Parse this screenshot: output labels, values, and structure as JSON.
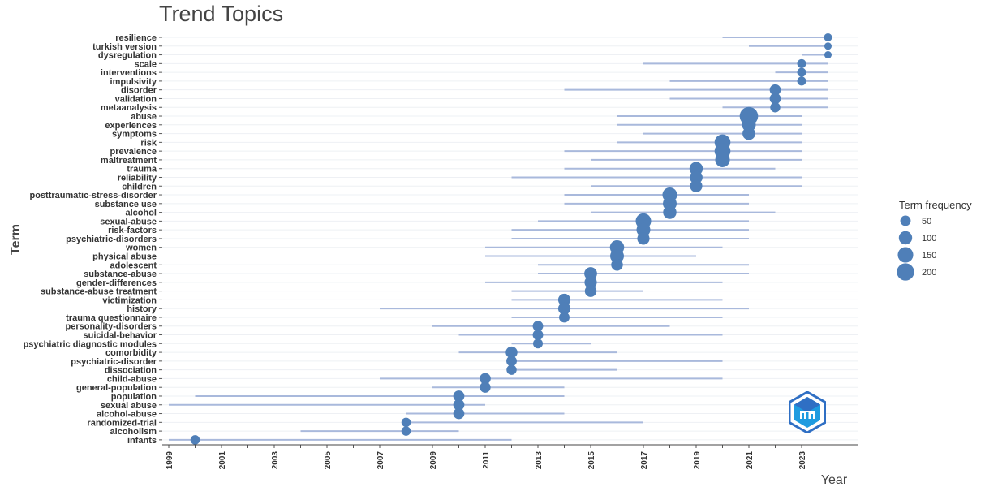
{
  "chart_data": {
    "type": "scatter",
    "title": "Trend Topics",
    "xlabel": "Year",
    "ylabel": "Term",
    "legend_title": "Term frequency",
    "legend_placement": "right",
    "legend_sizes": [
      50,
      100,
      150,
      200
    ],
    "xlim": [
      1998,
      2025
    ],
    "x_ticks": [
      1999,
      2001,
      2003,
      2005,
      2007,
      2009,
      2011,
      2013,
      2015,
      2017,
      2019,
      2021,
      2023
    ],
    "colors": {
      "point": "#4f7fb8",
      "range_line": "#a9b9dc"
    },
    "terms": [
      {
        "term": "resilience",
        "year": 2024,
        "q1": 2020,
        "q3": 2024,
        "freq": 22
      },
      {
        "term": "turkish version",
        "year": 2024,
        "q1": 2021,
        "q3": 2024,
        "freq": 15
      },
      {
        "term": "dysregulation",
        "year": 2024,
        "q1": 2023,
        "q3": 2024,
        "freq": 15
      },
      {
        "term": "scale",
        "year": 2023,
        "q1": 2017,
        "q3": 2024,
        "freq": 30
      },
      {
        "term": "interventions",
        "year": 2023,
        "q1": 2022,
        "q3": 2024,
        "freq": 30
      },
      {
        "term": "impulsivity",
        "year": 2023,
        "q1": 2018,
        "q3": 2024,
        "freq": 30
      },
      {
        "term": "disorder",
        "year": 2022,
        "q1": 2014,
        "q3": 2024,
        "freq": 60
      },
      {
        "term": "validation",
        "year": 2022,
        "q1": 2018,
        "q3": 2024,
        "freq": 60
      },
      {
        "term": "metaanalysis",
        "year": 2022,
        "q1": 2020,
        "q3": 2024,
        "freq": 45
      },
      {
        "term": "abuse",
        "year": 2021,
        "q1": 2016,
        "q3": 2023,
        "freq": 230
      },
      {
        "term": "experiences",
        "year": 2021,
        "q1": 2016,
        "q3": 2023,
        "freq": 110
      },
      {
        "term": "symptoms",
        "year": 2021,
        "q1": 2017,
        "q3": 2023,
        "freq": 90
      },
      {
        "term": "risk",
        "year": 2020,
        "q1": 2016,
        "q3": 2023,
        "freq": 160
      },
      {
        "term": "prevalence",
        "year": 2020,
        "q1": 2014,
        "q3": 2023,
        "freq": 160
      },
      {
        "term": "maltreatment",
        "year": 2020,
        "q1": 2015,
        "q3": 2023,
        "freq": 130
      },
      {
        "term": "trauma",
        "year": 2019,
        "q1": 2014,
        "q3": 2022,
        "freq": 100
      },
      {
        "term": "reliability",
        "year": 2019,
        "q1": 2012,
        "q3": 2023,
        "freq": 90
      },
      {
        "term": "children",
        "year": 2019,
        "q1": 2015,
        "q3": 2023,
        "freq": 80
      },
      {
        "term": "posttraumatic-stress-disorder",
        "year": 2018,
        "q1": 2014,
        "q3": 2021,
        "freq": 130
      },
      {
        "term": "substance use",
        "year": 2018,
        "q1": 2014,
        "q3": 2021,
        "freq": 110
      },
      {
        "term": "alcohol",
        "year": 2018,
        "q1": 2015,
        "q3": 2022,
        "freq": 100
      },
      {
        "term": "sexual-abuse",
        "year": 2017,
        "q1": 2013,
        "q3": 2021,
        "freq": 150
      },
      {
        "term": "risk-factors",
        "year": 2017,
        "q1": 2012,
        "q3": 2021,
        "freq": 110
      },
      {
        "term": "psychiatric-disorders",
        "year": 2017,
        "q1": 2012,
        "q3": 2021,
        "freq": 80
      },
      {
        "term": "women",
        "year": 2016,
        "q1": 2011,
        "q3": 2020,
        "freq": 120
      },
      {
        "term": "physical abuse",
        "year": 2016,
        "q1": 2011,
        "q3": 2019,
        "freq": 110
      },
      {
        "term": "adolescent",
        "year": 2016,
        "q1": 2013,
        "q3": 2021,
        "freq": 70
      },
      {
        "term": "substance-abuse",
        "year": 2015,
        "q1": 2013,
        "q3": 2021,
        "freq": 90
      },
      {
        "term": "gender-differences",
        "year": 2015,
        "q1": 2011,
        "q3": 2020,
        "freq": 80
      },
      {
        "term": "substance-abuse treatment",
        "year": 2015,
        "q1": 2012,
        "q3": 2017,
        "freq": 70
      },
      {
        "term": "victimization",
        "year": 2014,
        "q1": 2012,
        "q3": 2020,
        "freq": 80
      },
      {
        "term": "history",
        "year": 2014,
        "q1": 2007,
        "q3": 2021,
        "freq": 80
      },
      {
        "term": "trauma questionnaire",
        "year": 2014,
        "q1": 2012,
        "q3": 2020,
        "freq": 50
      },
      {
        "term": "personality-disorders",
        "year": 2013,
        "q1": 2009,
        "q3": 2018,
        "freq": 50
      },
      {
        "term": "suicidal-behavior",
        "year": 2013,
        "q1": 2010,
        "q3": 2020,
        "freq": 50
      },
      {
        "term": "psychiatric diagnostic modules",
        "year": 2013,
        "q1": 2012,
        "q3": 2015,
        "freq": 40
      },
      {
        "term": "comorbidity",
        "year": 2012,
        "q1": 2010,
        "q3": 2016,
        "freq": 70
      },
      {
        "term": "psychiatric-disorder",
        "year": 2012,
        "q1": 2012,
        "q3": 2020,
        "freq": 50
      },
      {
        "term": "dissociation",
        "year": 2012,
        "q1": 2012,
        "q3": 2016,
        "freq": 45
      },
      {
        "term": "child-abuse",
        "year": 2011,
        "q1": 2007,
        "q3": 2020,
        "freq": 60
      },
      {
        "term": "general-population",
        "year": 2011,
        "q1": 2009,
        "q3": 2014,
        "freq": 55
      },
      {
        "term": "population",
        "year": 2010,
        "q1": 2000,
        "q3": 2014,
        "freq": 60
      },
      {
        "term": "sexual abuse",
        "year": 2010,
        "q1": 1999,
        "q3": 2011,
        "freq": 60
      },
      {
        "term": "alcohol-abuse",
        "year": 2010,
        "q1": 2008,
        "q3": 2014,
        "freq": 60
      },
      {
        "term": "randomized-trial",
        "year": 2008,
        "q1": 2008,
        "q3": 2017,
        "freq": 35
      },
      {
        "term": "alcoholism",
        "year": 2008,
        "q1": 2004,
        "q3": 2010,
        "freq": 35
      },
      {
        "term": "infants",
        "year": 2000,
        "q1": 1999,
        "q3": 2012,
        "freq": 35
      }
    ]
  }
}
